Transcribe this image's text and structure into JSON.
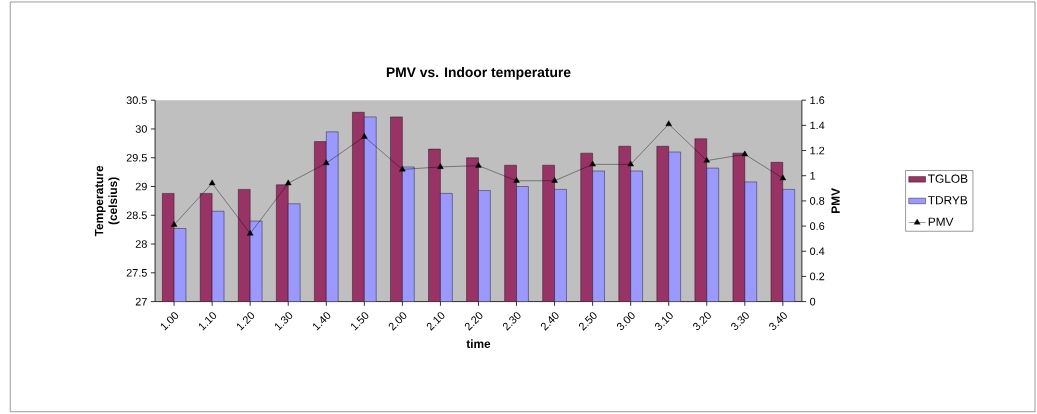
{
  "chart_data": {
    "type": "bar",
    "title": "PMV vs. Indoor temperature",
    "xlabel": "time",
    "ylabel": "Temperature (celsius)",
    "y2label": "PMV",
    "categories": [
      "1.00",
      "1.10",
      "1.20",
      "1.30",
      "1.40",
      "1.50",
      "2.00",
      "2.10",
      "2.20",
      "2.30",
      "2.40",
      "2.50",
      "3.00",
      "3.10",
      "3.20",
      "3.30",
      "3.40"
    ],
    "series": [
      {
        "name": "TGLOB",
        "color": "#993366",
        "values": [
          28.88,
          28.88,
          28.95,
          29.03,
          29.78,
          30.29,
          30.21,
          29.65,
          29.5,
          29.37,
          29.37,
          29.58,
          29.7,
          29.7,
          29.83,
          29.58,
          29.42
        ]
      },
      {
        "name": "TDRYB",
        "color": "#9999ff",
        "values": [
          28.27,
          28.57,
          28.4,
          28.7,
          29.95,
          30.21,
          29.34,
          28.88,
          28.93,
          29.0,
          28.95,
          29.27,
          29.27,
          29.6,
          29.32,
          29.08,
          28.95
        ]
      },
      {
        "name": "PMV",
        "type": "line",
        "axis": "y2",
        "color": "#000000",
        "marker": "triangle",
        "values": [
          0.61,
          0.94,
          0.54,
          0.94,
          1.1,
          1.31,
          1.05,
          1.07,
          1.08,
          0.96,
          0.96,
          1.09,
          1.09,
          1.41,
          1.12,
          1.17,
          0.98
        ]
      }
    ],
    "ylim": [
      27,
      30.5
    ],
    "yticks": [
      27,
      27.5,
      28,
      28.5,
      29,
      29.5,
      30,
      30.5
    ],
    "y2lim": [
      0,
      1.6
    ],
    "y2ticks": [
      0,
      0.2,
      0.4,
      0.6,
      0.8,
      1,
      1.2,
      1.4,
      1.6
    ],
    "legend": "right"
  }
}
